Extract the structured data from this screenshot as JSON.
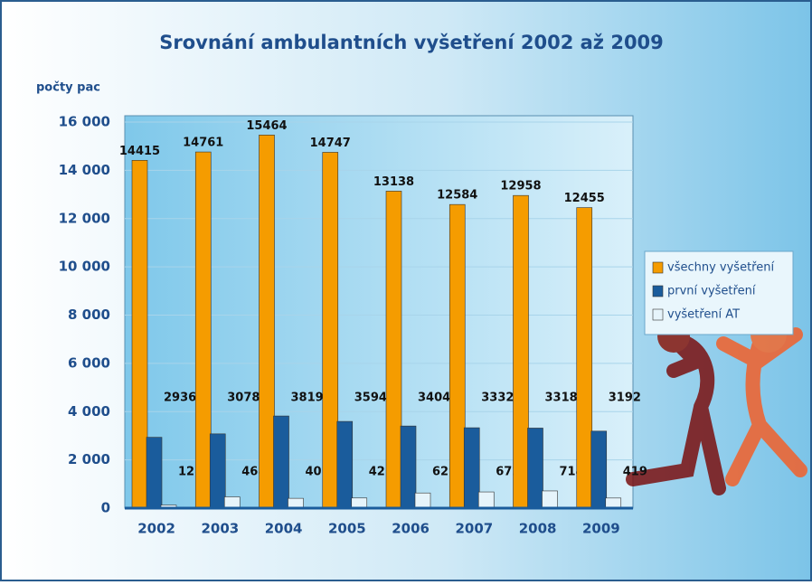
{
  "chart_data": {
    "type": "bar",
    "title": "Srovnání ambulantních vyšetření 2002 až 2009",
    "y_axis_label": "počty pac",
    "categories": [
      "2002",
      "2003",
      "2004",
      "2005",
      "2006",
      "2007",
      "2008",
      "2009"
    ],
    "series": [
      {
        "name": "všechny vyšetření",
        "color": "#f59c00",
        "values": [
          14415,
          14761,
          15464,
          14747,
          13138,
          12584,
          12958,
          12455
        ]
      },
      {
        "name": "první vyšetření",
        "color": "#1a5c9c",
        "values": [
          2936,
          3078,
          3819,
          3594,
          3404,
          3332,
          3318,
          3192
        ]
      },
      {
        "name": "vyšetření AT",
        "color": "#e6f4fb",
        "values": [
          128,
          468,
          407,
          421,
          629,
          672,
          714,
          419
        ]
      }
    ],
    "ylim": [
      0,
      16000
    ],
    "yticks": [
      0,
      {
        "value": 2000,
        "label": "2 000"
      },
      {
        "value": 4000,
        "label": "4 000"
      },
      {
        "value": 6000,
        "label": "6 000"
      },
      {
        "value": 8000,
        "label": "8 000"
      },
      {
        "value": 10000,
        "label": "10 000"
      },
      {
        "value": 12000,
        "label": "12 000"
      },
      {
        "value": 14000,
        "label": "14 000"
      },
      {
        "value": 16000,
        "label": "16 000"
      }
    ],
    "grid": true,
    "legend": "right"
  }
}
